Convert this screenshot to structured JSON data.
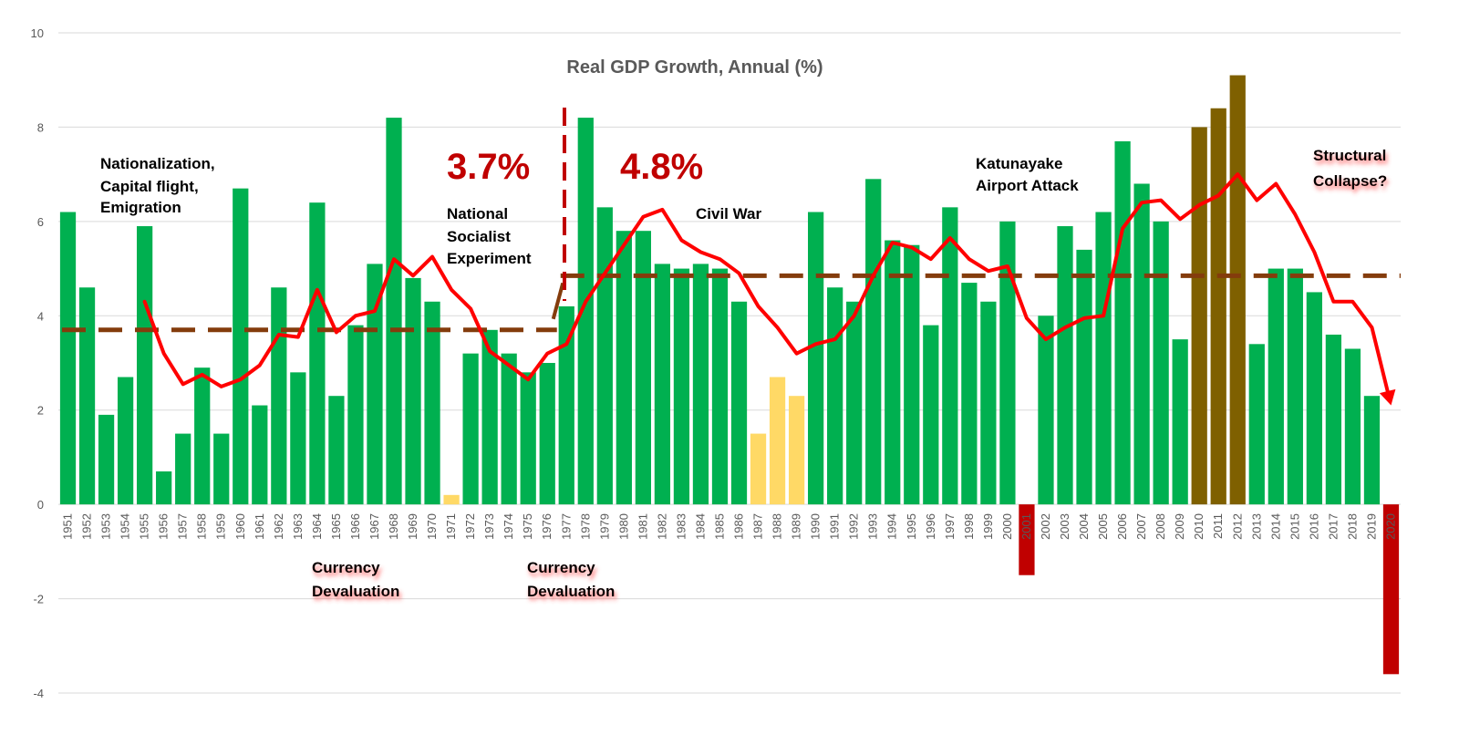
{
  "chart_data": {
    "type": "bar",
    "title": "Real GDP Growth, Annual (%)",
    "xlabel": "",
    "ylabel": "",
    "ylim": [
      -4,
      10
    ],
    "yticks": [
      "10",
      "8",
      "6",
      "4",
      "2",
      "0",
      "-2",
      "-4"
    ],
    "grid": true,
    "categories": [
      "1951",
      "1952",
      "1953",
      "1954",
      "1955",
      "1956",
      "1957",
      "1958",
      "1959",
      "1960",
      "1961",
      "1962",
      "1963",
      "1964",
      "1965",
      "1966",
      "1967",
      "1968",
      "1969",
      "1970",
      "1971",
      "1972",
      "1973",
      "1974",
      "1975",
      "1976",
      "1977",
      "1978",
      "1979",
      "1980",
      "1981",
      "1982",
      "1983",
      "1984",
      "1985",
      "1986",
      "1987",
      "1988",
      "1989",
      "1990",
      "1991",
      "1992",
      "1993",
      "1994",
      "1995",
      "1996",
      "1997",
      "1998",
      "1999",
      "2000",
      "2001",
      "2002",
      "2003",
      "2004",
      "2005",
      "2006",
      "2007",
      "2008",
      "2009",
      "2010",
      "2011",
      "2012",
      "2013",
      "2014",
      "2015",
      "2016",
      "2017",
      "2018",
      "2019",
      "2020"
    ],
    "values": [
      6.2,
      4.6,
      1.9,
      2.7,
      5.9,
      0.7,
      1.5,
      2.9,
      1.5,
      6.7,
      2.1,
      4.6,
      2.8,
      6.4,
      2.3,
      3.8,
      5.1,
      8.2,
      4.8,
      4.3,
      0.2,
      3.2,
      3.7,
      3.2,
      2.8,
      3.0,
      4.2,
      8.2,
      6.3,
      5.8,
      5.8,
      5.1,
      5.0,
      5.1,
      5.0,
      4.3,
      1.5,
      2.7,
      2.3,
      6.2,
      4.6,
      4.3,
      6.9,
      5.6,
      5.5,
      3.8,
      6.3,
      4.7,
      4.3,
      6.0,
      -1.5,
      4.0,
      5.9,
      5.4,
      6.2,
      7.7,
      6.8,
      6.0,
      3.5,
      8.0,
      8.4,
      9.1,
      3.4,
      5.0,
      5.0,
      4.5,
      3.6,
      3.3,
      2.3,
      -3.6
    ],
    "bar_colors": {
      "default": "#00b050",
      "1971": "#ffd966",
      "1987": "#ffd966",
      "1988": "#ffd966",
      "1989": "#ffd966",
      "2001": "#c00000",
      "2020": "#c00000",
      "2010": "#7f6000",
      "2011": "#7f6000",
      "2012": "#7f6000"
    },
    "series": [
      {
        "type": "line",
        "color": "#ff0000",
        "x": [
          "1955",
          "1956",
          "1957",
          "1958",
          "1959",
          "1960",
          "1961",
          "1962",
          "1963",
          "1964",
          "1965",
          "1966",
          "1967",
          "1968",
          "1969",
          "1970",
          "1971",
          "1972",
          "1973",
          "1974",
          "1975",
          "1976",
          "1977",
          "1978",
          "1979",
          "1980",
          "1981",
          "1982",
          "1983",
          "1984",
          "1985",
          "1986",
          "1987",
          "1988",
          "1989",
          "1990",
          "1991",
          "1992",
          "1993",
          "1994",
          "1995",
          "1996",
          "1997",
          "1998",
          "1999",
          "2000",
          "2001",
          "2002",
          "2003",
          "2004",
          "2005",
          "2006",
          "2007",
          "2008",
          "2009",
          "2010",
          "2011",
          "2012",
          "2013",
          "2014",
          "2015",
          "2016",
          "2017",
          "2018",
          "2019",
          "2020"
        ],
        "values": [
          4.3,
          3.2,
          2.55,
          2.75,
          2.5,
          2.65,
          2.95,
          3.6,
          3.55,
          4.55,
          3.65,
          4.0,
          4.1,
          5.2,
          4.85,
          5.25,
          4.55,
          4.15,
          3.25,
          2.95,
          2.65,
          3.2,
          3.4,
          4.3,
          4.9,
          5.5,
          6.1,
          6.25,
          5.6,
          5.35,
          5.2,
          4.9,
          4.2,
          3.75,
          3.2,
          3.4,
          3.5,
          4.0,
          4.85,
          5.55,
          5.45,
          5.2,
          5.65,
          5.2,
          4.95,
          5.05,
          3.95,
          3.5,
          3.75,
          3.95,
          4.0,
          5.85,
          6.4,
          6.45,
          6.05,
          6.35,
          6.55,
          7.0,
          6.45,
          6.8,
          6.15,
          5.35,
          4.3,
          4.3,
          3.75,
          2.1
        ]
      },
      {
        "type": "line",
        "style": "dashed",
        "color": "#843c0c",
        "x": [
          "1951",
          "1976"
        ],
        "values": [
          3.7,
          3.7
        ]
      },
      {
        "type": "line",
        "style": "dashed",
        "color": "#843c0c",
        "x": [
          "1977",
          "2020"
        ],
        "values": [
          4.85,
          4.85
        ]
      }
    ],
    "annotations": [
      "Nationalization, Capital flight, Emigration",
      "3.7%",
      "National Socialist Experiment",
      "4.8%",
      "Civil War",
      "Katunayake Airport Attack",
      "Structural Collapse?",
      "Currency Devaluation",
      "Currency Devaluation"
    ]
  },
  "labels": {
    "nationalization": [
      "Nationalization,",
      "Capital flight,",
      "Emigration"
    ],
    "avg1": "3.7%",
    "national_socialist": [
      "National",
      "Socialist",
      "Experiment"
    ],
    "avg2": "4.8%",
    "civil_war": "Civil War",
    "katunayake": [
      "Katunayake",
      "Airport Attack"
    ],
    "structural": [
      "Structural",
      "Collapse?"
    ],
    "devaluation1": [
      "Currency",
      "Devaluation"
    ],
    "devaluation2": [
      "Currency",
      "Devaluation"
    ]
  }
}
